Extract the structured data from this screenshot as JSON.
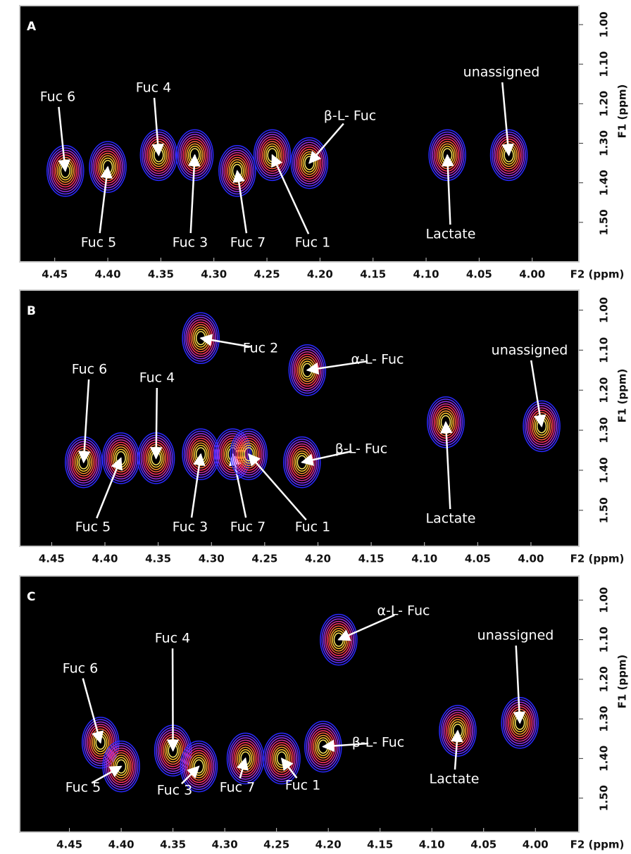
{
  "chart_data": [
    {
      "type": "contour",
      "panel": "A",
      "x_label": "F2 (ppm)",
      "y_label": "F1 (ppm)",
      "xlim": [
        4.483,
        3.956
      ],
      "ylim": [
        0.952,
        1.6
      ],
      "xticks": [
        4.45,
        {
          "value": 4.4,
          "label": "4.40"
        },
        4.35,
        {
          "value": 4.3,
          "label": "4.30"
        },
        4.25,
        {
          "value": 4.2,
          "label": "4.20"
        },
        4.15,
        {
          "value": 4.1,
          "label": "4.10"
        },
        4.05,
        {
          "value": 4,
          "label": "4.00"
        }
      ],
      "yticks": [
        {
          "value": 1,
          "label": "1.00"
        },
        {
          "value": 1.1,
          "label": "1.10"
        },
        {
          "value": 1.2,
          "label": "1.20"
        },
        {
          "value": 1.3,
          "label": "1.30"
        },
        {
          "value": 1.4,
          "label": "1.40"
        },
        {
          "value": 1.5,
          "label": "1.50"
        }
      ],
      "annotations": [
        {
          "label": "Fuc 6",
          "x": 4.44,
          "y": 1.37
        },
        {
          "label": "Fuc 4",
          "x": 4.352,
          "y": 1.33
        },
        {
          "label": "β-L- Fuc",
          "x": 4.21,
          "y": 1.35
        },
        {
          "label": "Fuc 5",
          "x": 4.4,
          "y": 1.36
        },
        {
          "label": "Fuc 3",
          "x": 4.318,
          "y": 1.33
        },
        {
          "label": "Fuc 7",
          "x": 4.278,
          "y": 1.37
        },
        {
          "label": "Fuc 1",
          "x": 4.245,
          "y": 1.33
        },
        {
          "label": "Lactate",
          "x": 4.08,
          "y": 1.33
        },
        {
          "label": "unassigned",
          "x": 4.022,
          "y": 1.33
        }
      ]
    },
    {
      "type": "contour",
      "panel": "B",
      "x_label": "F2 (ppm)",
      "y_label": "F1 (ppm)",
      "xlim": [
        4.48,
        3.955
      ],
      "ylim": [
        0.95,
        1.59
      ],
      "xticks": [
        4.45,
        {
          "value": 4.4,
          "label": "4.40"
        },
        4.35,
        {
          "value": 4.3,
          "label": "4.30"
        },
        4.25,
        {
          "value": 4.2,
          "label": "4.20"
        },
        4.15,
        {
          "value": 4.1,
          "label": "4.10"
        },
        4.05,
        {
          "value": 4,
          "label": "4.00"
        }
      ],
      "yticks": [
        {
          "value": 1,
          "label": "1.00"
        },
        {
          "value": 1.1,
          "label": "1.10"
        },
        {
          "value": 1.2,
          "label": "1.20"
        },
        {
          "value": 1.3,
          "label": "1.30"
        },
        {
          "value": 1.4,
          "label": "1.40"
        },
        {
          "value": 1.5,
          "label": "1.50"
        }
      ],
      "annotations": [
        {
          "label": "Fuc 2",
          "x": 4.31,
          "y": 1.07
        },
        {
          "label": "α-L- Fuc",
          "x": 4.21,
          "y": 1.15
        },
        {
          "label": "unassigned",
          "x": 3.99,
          "y": 1.29
        },
        {
          "label": "Fuc 6",
          "x": 4.42,
          "y": 1.38
        },
        {
          "label": "Fuc 4",
          "x": 4.352,
          "y": 1.37
        },
        {
          "label": "β-L- Fuc",
          "x": 4.215,
          "y": 1.38
        },
        {
          "label": "Fuc 5",
          "x": 4.385,
          "y": 1.37
        },
        {
          "label": "Fuc 3",
          "x": 4.31,
          "y": 1.36
        },
        {
          "label": "Fuc 7",
          "x": 4.28,
          "y": 1.36
        },
        {
          "label": "Fuc 1",
          "x": 4.265,
          "y": 1.36
        },
        {
          "label": "Lactate",
          "x": 4.08,
          "y": 1.28
        }
      ]
    },
    {
      "type": "contour",
      "panel": "C",
      "x_label": "F2 (ppm)",
      "y_label": "F1 (ppm)",
      "xlim": [
        4.498,
        3.958
      ],
      "ylim": [
        0.939,
        1.586
      ],
      "xticks": [
        4.45,
        {
          "value": 4.4,
          "label": "4.40"
        },
        4.35,
        {
          "value": 4.3,
          "label": "4.30"
        },
        4.25,
        {
          "value": 4.2,
          "label": "4.20"
        },
        4.15,
        {
          "value": 4.1,
          "label": "4.10"
        },
        4.05,
        {
          "value": 4,
          "label": "4.00"
        }
      ],
      "yticks": [
        {
          "value": 1,
          "label": "1.00"
        },
        {
          "value": 1.1,
          "label": "1.10"
        },
        {
          "value": 1.2,
          "label": "1.20"
        },
        {
          "value": 1.3,
          "label": "1.30"
        },
        {
          "value": 1.4,
          "label": "1.40"
        },
        {
          "value": 1.5,
          "label": "1.50"
        }
      ],
      "annotations": [
        {
          "label": "Fuc 4",
          "x": 4.35,
          "y": 1.38
        },
        {
          "label": "α-L- Fuc",
          "x": 4.19,
          "y": 1.1
        },
        {
          "label": "unassigned",
          "x": 4.015,
          "y": 1.31
        },
        {
          "label": "Fuc 6",
          "x": 4.42,
          "y": 1.36
        },
        {
          "label": "β-L- Fuc",
          "x": 4.205,
          "y": 1.37
        },
        {
          "label": "Lactate",
          "x": 4.075,
          "y": 1.33
        },
        {
          "label": "Fuc 5",
          "x": 4.4,
          "y": 1.42
        },
        {
          "label": "Fuc 3",
          "x": 4.325,
          "y": 1.42
        },
        {
          "label": "Fuc 7",
          "x": 4.28,
          "y": 1.4
        },
        {
          "label": "Fuc 1",
          "x": 4.245,
          "y": 1.4
        }
      ]
    }
  ]
}
